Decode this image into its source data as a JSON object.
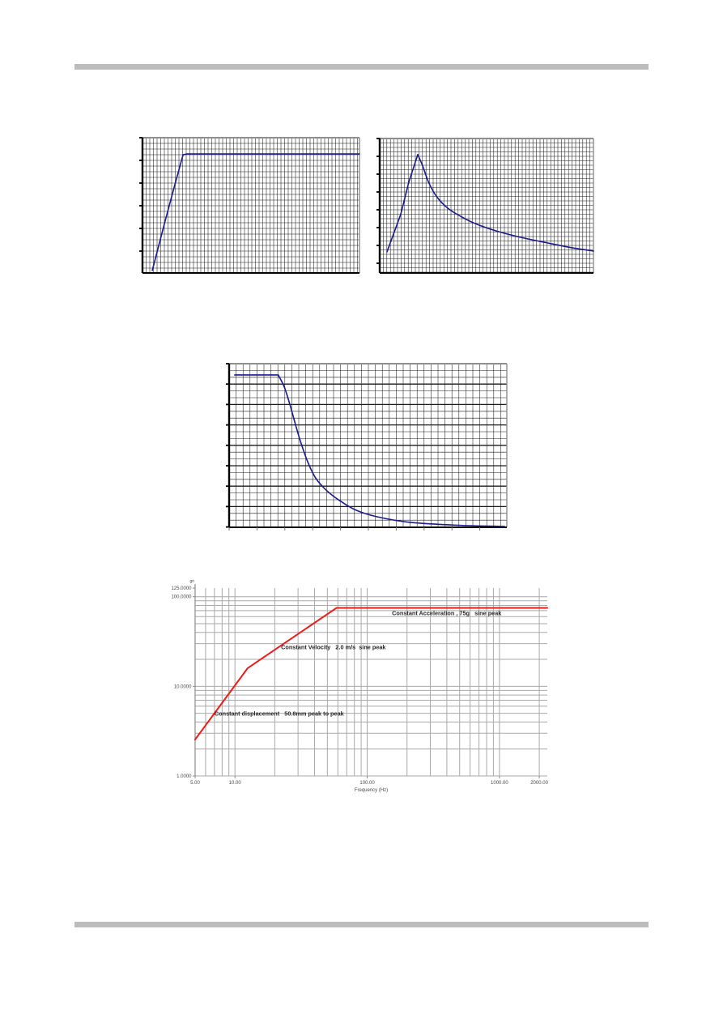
{
  "page": {
    "background": "#ffffff",
    "rule_color": "#bcbcbc"
  },
  "chart_data": [
    {
      "name": "top-left-grid-chart",
      "type": "line",
      "title": "",
      "axis_labels": "none (graph-paper grid, unlabeled)",
      "description": "curve rises steeply from lower-left then plateaus flat near the top",
      "line_color": "#1a1a8c",
      "grid_color": "#1b1b1b",
      "segments": [
        {
          "smooth": false,
          "points": [
            [
              0.045,
              0.982
            ],
            [
              0.102,
              0.63
            ],
            [
              0.152,
              0.33
            ],
            [
              0.187,
              0.126
            ]
          ]
        },
        {
          "smooth": false,
          "points": [
            [
              0.187,
              0.126
            ],
            [
              0.205,
              0.12
            ],
            [
              1.0,
              0.12
            ]
          ]
        }
      ]
    },
    {
      "name": "top-right-grid-chart",
      "type": "line",
      "title": "",
      "axis_labels": "none (graph-paper grid, unlabeled)",
      "description": "curve rises steeply to a sharp peak then decays hyperbolically to the right",
      "line_color": "#1a1a8c",
      "grid_color": "#1b1b1b",
      "segments": [
        {
          "smooth": false,
          "points": [
            [
              0.034,
              0.843
            ],
            [
              0.098,
              0.566
            ],
            [
              0.136,
              0.325
            ],
            [
              0.178,
              0.12
            ]
          ]
        },
        {
          "smooth": true,
          "points": [
            [
              0.178,
              0.12
            ],
            [
              0.2,
              0.2
            ],
            [
              0.23,
              0.33
            ],
            [
              0.27,
              0.44
            ],
            [
              0.32,
              0.52
            ],
            [
              0.38,
              0.58
            ],
            [
              0.45,
              0.635
            ],
            [
              0.55,
              0.69
            ],
            [
              0.66,
              0.735
            ],
            [
              0.78,
              0.775
            ],
            [
              0.89,
              0.81
            ],
            [
              1.0,
              0.837
            ]
          ]
        }
      ]
    },
    {
      "name": "middle-grid-chart",
      "type": "line",
      "title": "",
      "axis_labels": "none (graph-paper grid, unlabeled)",
      "description": "curve is flat at top-left then decays exponentially toward bottom-right",
      "line_color": "#1a1a8c",
      "grid_color": "#1b1b1b",
      "segments": [
        {
          "smooth": false,
          "points": [
            [
              0.02,
              0.069
            ],
            [
              0.177,
              0.069
            ]
          ]
        },
        {
          "smooth": true,
          "points": [
            [
              0.177,
              0.069
            ],
            [
              0.199,
              0.144
            ],
            [
              0.219,
              0.251
            ],
            [
              0.238,
              0.366
            ],
            [
              0.256,
              0.47
            ],
            [
              0.283,
              0.6
            ],
            [
              0.312,
              0.7
            ],
            [
              0.351,
              0.775
            ],
            [
              0.399,
              0.838
            ],
            [
              0.458,
              0.896
            ],
            [
              0.536,
              0.937
            ],
            [
              0.652,
              0.97
            ],
            [
              0.817,
              0.987
            ],
            [
              0.992,
              0.995
            ]
          ]
        }
      ]
    },
    {
      "name": "sine-test-profile-chart",
      "type": "line",
      "title": "",
      "x_scale": "log",
      "y_scale": "log",
      "xlim": [
        5,
        2300
      ],
      "ylim": [
        1,
        125
      ],
      "xlabel": "Frequency (Hz)",
      "y_unit": "gn",
      "line_color": "#ee1c16",
      "grid_color": "#a9a9a9",
      "text_color": "#4a4a4a",
      "annotation_color": "#282828",
      "series": [
        {
          "name": "sine sweep profile",
          "points": [
            [
              5,
              2.55
            ],
            [
              12.5,
              16
            ],
            [
              58.6,
              75
            ],
            [
              2300,
              75
            ]
          ]
        }
      ],
      "x_ticks": [
        [
          5,
          "5.00"
        ],
        [
          10,
          "10.00"
        ],
        [
          100,
          "100.00"
        ],
        [
          1000,
          "1000.00"
        ],
        [
          2000,
          "2000.00"
        ]
      ],
      "y_ticks": [
        [
          1,
          "1.0000"
        ],
        [
          10,
          "10.0000"
        ],
        [
          100,
          "100.0000"
        ],
        [
          125,
          "125.0000"
        ]
      ],
      "x_grid": [
        5,
        6,
        7,
        8,
        9,
        10,
        20,
        30,
        40,
        50,
        60,
        70,
        80,
        90,
        100,
        200,
        300,
        400,
        500,
        600,
        700,
        800,
        900,
        1000,
        2000
      ],
      "y_grid": [
        1,
        2,
        3,
        4,
        5,
        6,
        7,
        8,
        9,
        10,
        20,
        30,
        40,
        50,
        60,
        70,
        80,
        90,
        100
      ],
      "annotations": [
        {
          "text": "Constant Acceleration , 75g   sine peak",
          "fx": 0.559,
          "fy": 0.134
        },
        {
          "text": "Constant Velocity   2.0 m/s  sine peak",
          "fx": 0.244,
          "fy": 0.315
        },
        {
          "text": "Constant displacement   50.8mm peak to peak",
          "fx": 0.055,
          "fy": 0.668
        }
      ]
    }
  ]
}
